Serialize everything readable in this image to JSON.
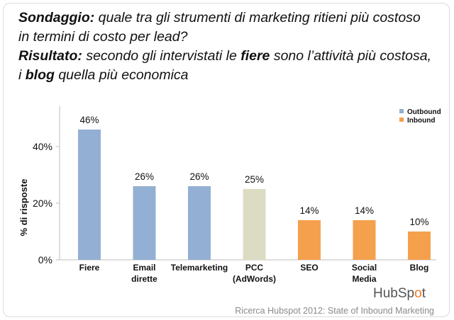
{
  "headline": {
    "line1_label": "Sondaggio:",
    "line1_text": " quale tra gli strumenti di marketing ritieni più costoso",
    "line2_text": "in termini di costo per lead?",
    "line3_label": "Risultato:",
    "line3_text_a": " secondo gli intervistati le ",
    "line3_bold": "fiere",
    "line3_text_b": " sono l’attività più costosa,",
    "line4_text_a": "i ",
    "line4_bold": "blog",
    "line4_text_b": " quella più economica"
  },
  "chart_data": {
    "type": "bar",
    "categories": [
      [
        "Fiere"
      ],
      [
        "Email",
        "dirette"
      ],
      [
        "Telemarketing"
      ],
      [
        "PCC",
        "(AdWords)"
      ],
      [
        "SEO"
      ],
      [
        "Social",
        "Media"
      ],
      [
        "Blog"
      ]
    ],
    "values": [
      46,
      26,
      26,
      25,
      14,
      14,
      10
    ],
    "data_labels": [
      "46%",
      "26%",
      "26%",
      "25%",
      "14%",
      "14%",
      "10%"
    ],
    "bar_groups": [
      "Outbound",
      "Outbound",
      "Outbound",
      "",
      "Inbound",
      "Inbound",
      "Inbound"
    ],
    "legend": [
      {
        "name": "Outbound",
        "color": "#93afd3"
      },
      {
        "name": "Inbound",
        "color": "#f5a04d"
      }
    ],
    "neutral_color": "#dcdcc4",
    "ylabel": "% di risposte",
    "yticks": [
      0,
      20,
      40
    ],
    "ytick_labels": [
      "0%",
      "20%",
      "40%"
    ],
    "ylim": [
      0,
      50
    ],
    "legend_position": "top-right",
    "grid": false
  },
  "footer": {
    "brand_a": "HubSp",
    "brand_o": "o",
    "brand_b": "t",
    "source": "Ricerca Hubspot 2012: State of Inbound Marketing"
  }
}
